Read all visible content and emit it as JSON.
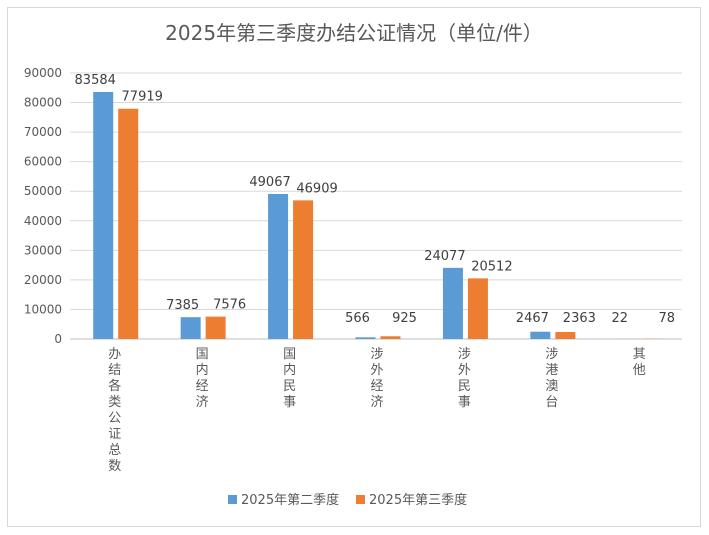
{
  "chart_data": {
    "type": "bar",
    "title": "2025年第三季度办结公证情况（单位/件）",
    "xlabel": "",
    "ylabel": "",
    "ylim": [
      0,
      90000
    ],
    "yticks": [
      0,
      10000,
      20000,
      30000,
      40000,
      50000,
      60000,
      70000,
      80000,
      90000
    ],
    "grid": true,
    "legend": "bottom",
    "categories": [
      "办结各类公证总数",
      "国内经济",
      "国内民事",
      "涉外经济",
      "涉外民事",
      "涉港澳台",
      "其他"
    ],
    "series": [
      {
        "name": "2025年第二季度",
        "color": "#5B9BD5",
        "values": [
          83584,
          7385,
          49067,
          566,
          24077,
          2467,
          22
        ]
      },
      {
        "name": "2025年第三季度",
        "color": "#ED7D31",
        "values": [
          77919,
          7576,
          46909,
          925,
          20512,
          2363,
          78
        ]
      }
    ]
  }
}
